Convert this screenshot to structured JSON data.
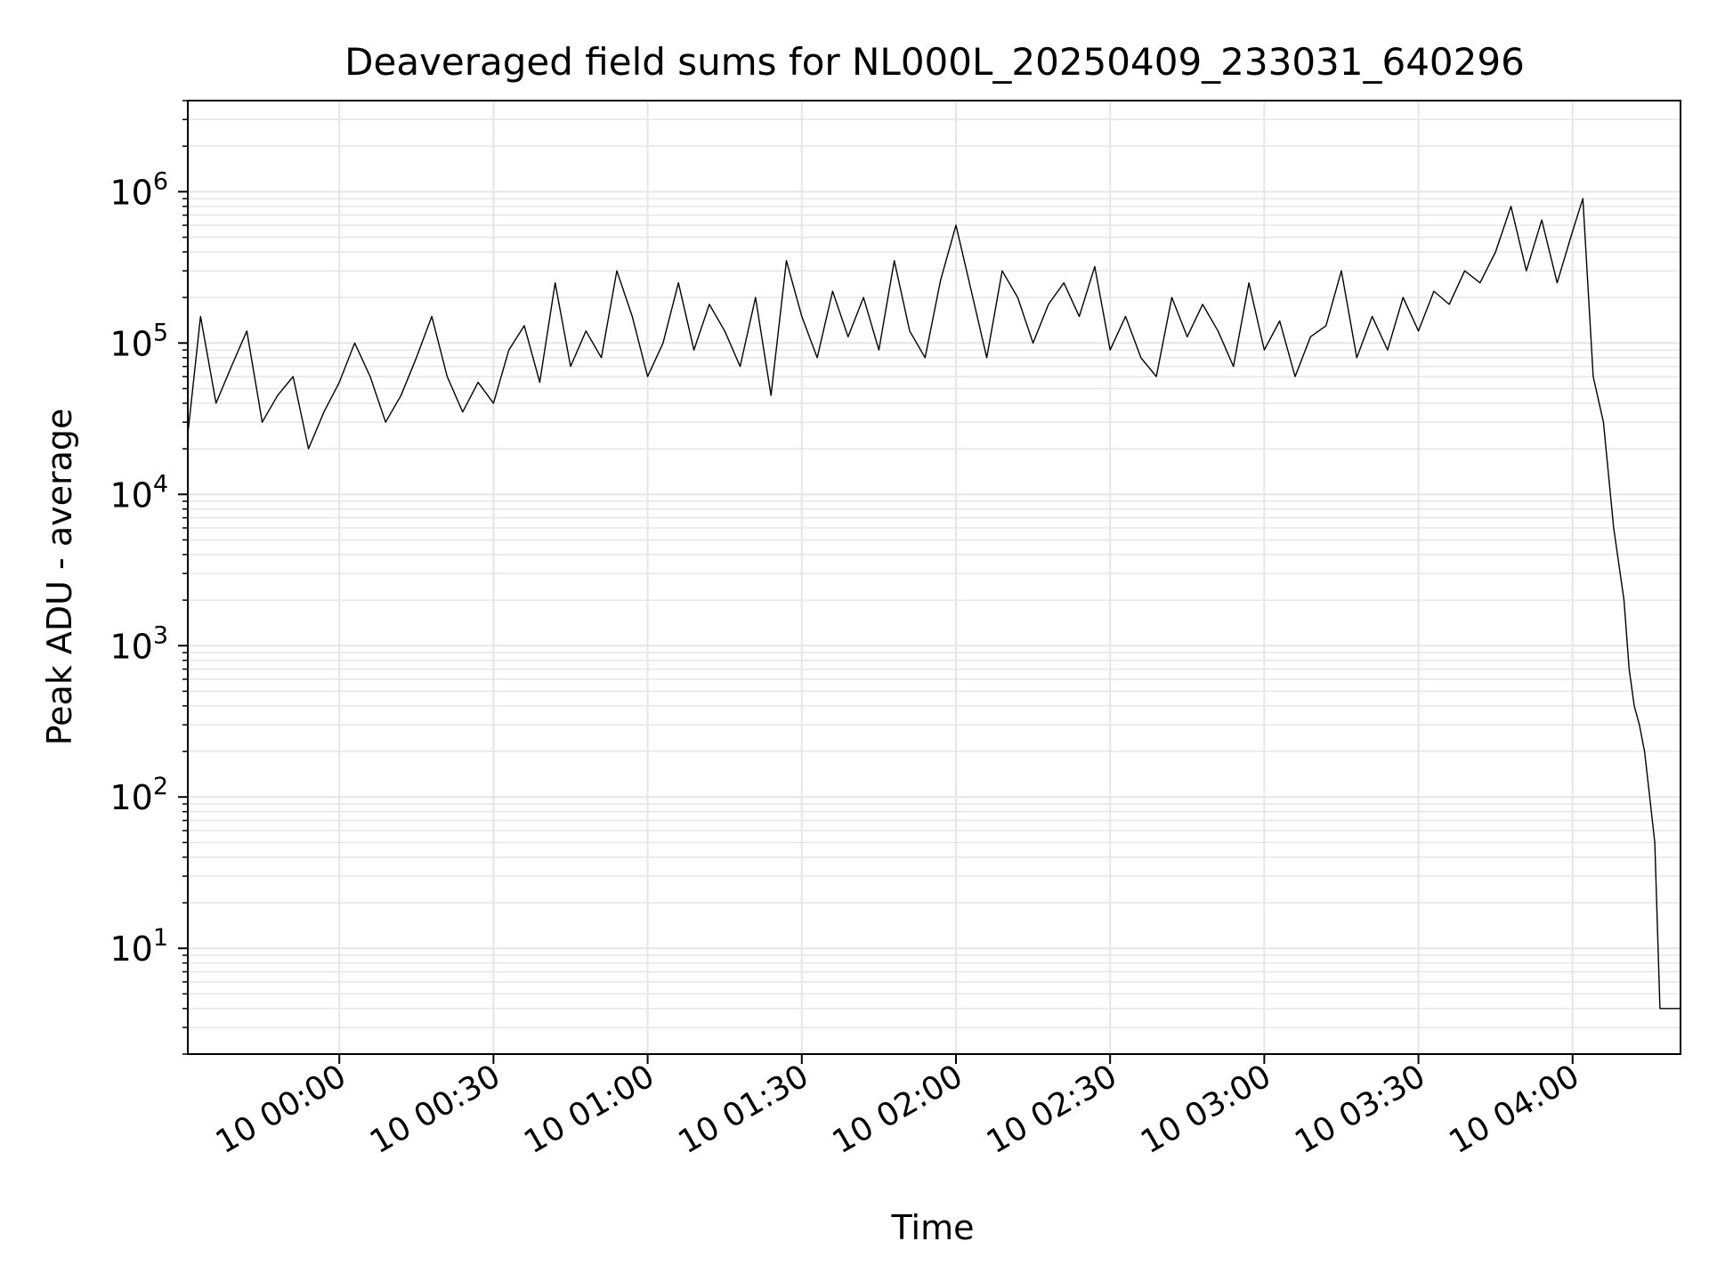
{
  "chart_data": {
    "type": "line",
    "title": "Deaveraged field sums for NL000L_20250409_233031_640296",
    "xlabel": "Time",
    "ylabel": "Peak ADU - average",
    "yscale": "log",
    "ylim": [
      2,
      4000000
    ],
    "xlim": [
      "2025-04-09 23:30:31",
      "2025-04-10 04:21:00"
    ],
    "grid": true,
    "x_ticks": [
      {
        "time": "2025-04-10 00:00:00",
        "label": "10 00:00"
      },
      {
        "time": "2025-04-10 00:30:00",
        "label": "10 00:30"
      },
      {
        "time": "2025-04-10 01:00:00",
        "label": "10 01:00"
      },
      {
        "time": "2025-04-10 01:30:00",
        "label": "10 01:30"
      },
      {
        "time": "2025-04-10 02:00:00",
        "label": "10 02:00"
      },
      {
        "time": "2025-04-10 02:30:00",
        "label": "10 02:30"
      },
      {
        "time": "2025-04-10 03:00:00",
        "label": "10 03:00"
      },
      {
        "time": "2025-04-10 03:30:00",
        "label": "10 03:30"
      },
      {
        "time": "2025-04-10 04:00:00",
        "label": "10 04:00"
      }
    ],
    "y_ticks": [
      {
        "value": 10,
        "base": "10",
        "exp": "1"
      },
      {
        "value": 100,
        "base": "10",
        "exp": "2"
      },
      {
        "value": 1000,
        "base": "10",
        "exp": "3"
      },
      {
        "value": 10000,
        "base": "10",
        "exp": "4"
      },
      {
        "value": 100000,
        "base": "10",
        "exp": "5"
      },
      {
        "value": 1000000,
        "base": "10",
        "exp": "6"
      }
    ],
    "line_color": "#000000",
    "grid_color": "#e6e6e6",
    "series": [
      {
        "x": [
          "2025-04-09 23:30:31",
          "2025-04-09 23:33:00",
          "2025-04-09 23:36:00",
          "2025-04-09 23:39:00",
          "2025-04-09 23:42:00",
          "2025-04-09 23:45:00",
          "2025-04-09 23:48:00",
          "2025-04-09 23:51:00",
          "2025-04-09 23:54:00",
          "2025-04-09 23:57:00",
          "2025-04-10 00:00:00",
          "2025-04-10 00:03:00",
          "2025-04-10 00:06:00",
          "2025-04-10 00:09:00",
          "2025-04-10 00:12:00",
          "2025-04-10 00:15:00",
          "2025-04-10 00:18:00",
          "2025-04-10 00:21:00",
          "2025-04-10 00:24:00",
          "2025-04-10 00:27:00",
          "2025-04-10 00:30:00",
          "2025-04-10 00:33:00",
          "2025-04-10 00:36:00",
          "2025-04-10 00:39:00",
          "2025-04-10 00:42:00",
          "2025-04-10 00:45:00",
          "2025-04-10 00:48:00",
          "2025-04-10 00:51:00",
          "2025-04-10 00:54:00",
          "2025-04-10 00:57:00",
          "2025-04-10 01:00:00",
          "2025-04-10 01:03:00",
          "2025-04-10 01:06:00",
          "2025-04-10 01:09:00",
          "2025-04-10 01:12:00",
          "2025-04-10 01:15:00",
          "2025-04-10 01:18:00",
          "2025-04-10 01:21:00",
          "2025-04-10 01:24:00",
          "2025-04-10 01:27:00",
          "2025-04-10 01:30:00",
          "2025-04-10 01:33:00",
          "2025-04-10 01:36:00",
          "2025-04-10 01:39:00",
          "2025-04-10 01:42:00",
          "2025-04-10 01:45:00",
          "2025-04-10 01:48:00",
          "2025-04-10 01:51:00",
          "2025-04-10 01:54:00",
          "2025-04-10 01:57:00",
          "2025-04-10 02:00:00",
          "2025-04-10 02:03:00",
          "2025-04-10 02:06:00",
          "2025-04-10 02:09:00",
          "2025-04-10 02:12:00",
          "2025-04-10 02:15:00",
          "2025-04-10 02:18:00",
          "2025-04-10 02:21:00",
          "2025-04-10 02:24:00",
          "2025-04-10 02:27:00",
          "2025-04-10 02:30:00",
          "2025-04-10 02:33:00",
          "2025-04-10 02:36:00",
          "2025-04-10 02:39:00",
          "2025-04-10 02:42:00",
          "2025-04-10 02:45:00",
          "2025-04-10 02:48:00",
          "2025-04-10 02:51:00",
          "2025-04-10 02:54:00",
          "2025-04-10 02:57:00",
          "2025-04-10 03:00:00",
          "2025-04-10 03:03:00",
          "2025-04-10 03:06:00",
          "2025-04-10 03:09:00",
          "2025-04-10 03:12:00",
          "2025-04-10 03:15:00",
          "2025-04-10 03:18:00",
          "2025-04-10 03:21:00",
          "2025-04-10 03:24:00",
          "2025-04-10 03:27:00",
          "2025-04-10 03:30:00",
          "2025-04-10 03:33:00",
          "2025-04-10 03:36:00",
          "2025-04-10 03:39:00",
          "2025-04-10 03:42:00",
          "2025-04-10 03:45:00",
          "2025-04-10 03:48:00",
          "2025-04-10 03:51:00",
          "2025-04-10 03:54:00",
          "2025-04-10 03:57:00",
          "2025-04-10 04:00:00",
          "2025-04-10 04:02:00",
          "2025-04-10 04:04:00",
          "2025-04-10 04:06:00",
          "2025-04-10 04:08:00",
          "2025-04-10 04:10:00",
          "2025-04-10 04:11:00",
          "2025-04-10 04:12:00",
          "2025-04-10 04:13:00",
          "2025-04-10 04:14:00",
          "2025-04-10 04:15:00",
          "2025-04-10 04:16:00",
          "2025-04-10 04:17:00",
          "2025-04-10 04:18:00",
          "2025-04-10 04:19:00",
          "2025-04-10 04:20:00",
          "2025-04-10 04:21:00"
        ],
        "y": [
          25000,
          150000,
          40000,
          70000,
          120000,
          30000,
          45000,
          60000,
          20000,
          35000,
          55000,
          100000,
          60000,
          30000,
          45000,
          80000,
          150000,
          60000,
          35000,
          55000,
          40000,
          90000,
          130000,
          55000,
          250000,
          70000,
          120000,
          80000,
          300000,
          150000,
          60000,
          100000,
          250000,
          90000,
          180000,
          120000,
          70000,
          200000,
          45000,
          350000,
          150000,
          80000,
          220000,
          110000,
          200000,
          90000,
          350000,
          120000,
          80000,
          260000,
          600000,
          220000,
          80000,
          300000,
          200000,
          100000,
          180000,
          250000,
          150000,
          320000,
          90000,
          150000,
          80000,
          60000,
          200000,
          110000,
          180000,
          120000,
          70000,
          250000,
          90000,
          140000,
          60000,
          110000,
          130000,
          300000,
          80000,
          150000,
          90000,
          200000,
          120000,
          220000,
          180000,
          300000,
          250000,
          400000,
          800000,
          300000,
          650000,
          250000,
          550000,
          900000,
          60000,
          30000,
          6000,
          2000,
          700,
          400,
          300,
          200,
          100,
          50,
          4,
          4,
          4,
          4,
          4
        ]
      }
    ]
  }
}
